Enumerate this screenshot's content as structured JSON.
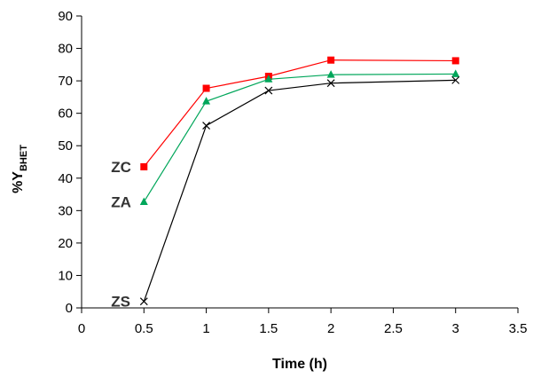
{
  "chart_data": {
    "type": "line",
    "title": "",
    "xlabel": "Time (h)",
    "ylabel": {
      "main": "%Y",
      "subscript": "BHET"
    },
    "xlim": [
      0,
      3.5
    ],
    "ylim": [
      0,
      90
    ],
    "xticks": [
      "0",
      "0.5",
      "1",
      "1.5",
      "2",
      "2.5",
      "3",
      "3.5"
    ],
    "yticks": [
      "0",
      "10",
      "20",
      "30",
      "40",
      "50",
      "60",
      "70",
      "80",
      "90"
    ],
    "grid": false,
    "legend": "none",
    "x": [
      0.5,
      1,
      1.5,
      2,
      3
    ],
    "series": [
      {
        "name": "ZC",
        "values": [
          43.5,
          67.7,
          71.4,
          76.4,
          76.2
        ],
        "color": "#ff0000",
        "marker": "square"
      },
      {
        "name": "ZA",
        "values": [
          32.7,
          63.7,
          70.5,
          71.9,
          72.1
        ],
        "color": "#00a65a",
        "marker": "triangle"
      },
      {
        "name": "ZS",
        "values": [
          2.0,
          56.2,
          67.0,
          69.3,
          70.2
        ],
        "color": "#000000",
        "marker": "x"
      }
    ]
  }
}
